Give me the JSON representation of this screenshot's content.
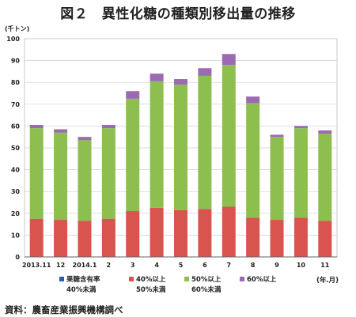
{
  "title": "図２　異性化糖の種類別移出量の推移",
  "source": "資料：農畜産業振興機構調べ",
  "legend_unit": "(年.月)",
  "chart_data": {
    "type": "bar",
    "stacked": true,
    "y_unit_label": "(千トン)",
    "ylim": [
      0,
      100
    ],
    "yticks": [
      0,
      10,
      20,
      30,
      40,
      50,
      60,
      70,
      80,
      90,
      100
    ],
    "grid": true,
    "legend_position": "bottom",
    "categories": [
      "2013.11",
      "12",
      "2014.1",
      "2",
      "3",
      "4",
      "5",
      "6",
      "7",
      "8",
      "9",
      "10",
      "11"
    ],
    "series": [
      {
        "name": "果糖含有率 40%未満",
        "color": "#2a5caa",
        "values": [
          0,
          0,
          0,
          0,
          0,
          0,
          0,
          0,
          0,
          0,
          0,
          0,
          0
        ]
      },
      {
        "name": "40%以上 50%未満",
        "color": "#d9534f",
        "values": [
          17.5,
          17,
          16.5,
          17.5,
          21,
          22.5,
          21.5,
          22,
          23,
          18,
          17,
          18,
          16.5
        ]
      },
      {
        "name": "50%以上 60%未満",
        "color": "#8cbf4e",
        "values": [
          41.5,
          40,
          37,
          41.5,
          51.5,
          58,
          57.5,
          61,
          65,
          52.5,
          38,
          41,
          40
        ]
      },
      {
        "name": "60%以上",
        "color": "#9b6ab3",
        "values": [
          1.5,
          1.5,
          1.5,
          1.5,
          3.5,
          3.5,
          2.5,
          3.5,
          5,
          3,
          1,
          1,
          1.5
        ]
      }
    ]
  }
}
